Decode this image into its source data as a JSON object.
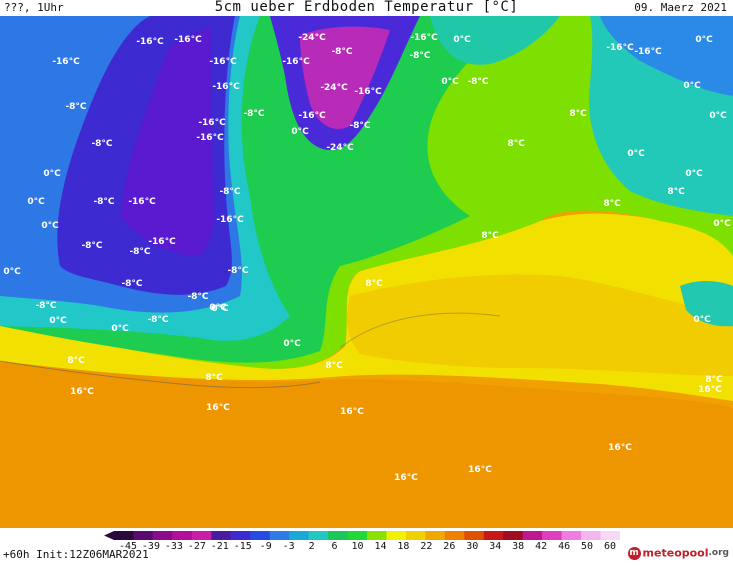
{
  "header": {
    "left": "???, 1Uhr",
    "title": "5cm ueber Erdboden Temperatur [°C]",
    "date": "09. Maerz 2021"
  },
  "legend": {
    "ticks": [
      "-45",
      "-39",
      "-33",
      "-27",
      "-21",
      "-15",
      "-9",
      "-3",
      "2",
      "6",
      "10",
      "14",
      "18",
      "22",
      "26",
      "30",
      "34",
      "38",
      "42",
      "46",
      "50",
      "60"
    ],
    "colors": [
      "#2a0a3a",
      "#5a0a6e",
      "#8a0c8a",
      "#b0109a",
      "#c81ea8",
      "#4a1aa0",
      "#3d2ad0",
      "#2a4ae6",
      "#2e7ae8",
      "#1aa8d8",
      "#22c8c0",
      "#1ac85a",
      "#20d838",
      "#8ae000",
      "#f0f000",
      "#f0d000",
      "#f0a800",
      "#f08000",
      "#e05000",
      "#c81818",
      "#a00c20",
      "#c01890",
      "#e040c0",
      "#f07ce0",
      "#f4b4ee",
      "#f8d8f6"
    ]
  },
  "map": {
    "labels": [
      {
        "t": "-16°C"
      },
      {
        "t": "-16°C"
      },
      {
        "t": "-24°C"
      },
      {
        "t": "-16°C"
      },
      {
        "t": "0°C"
      },
      {
        "t": "-16°C"
      },
      {
        "t": "-16°C"
      },
      {
        "t": "-16°C"
      },
      {
        "t": "-8°C"
      },
      {
        "t": "-8°C"
      },
      {
        "t": "0°C"
      },
      {
        "t": "-16°C"
      },
      {
        "t": "-16°C"
      },
      {
        "t": "-8°C"
      },
      {
        "t": "-24°C"
      },
      {
        "t": "-16°C"
      },
      {
        "t": "0°C"
      },
      {
        "t": "-8°C"
      },
      {
        "t": "-16°C"
      },
      {
        "t": "0°C"
      },
      {
        "t": "-16°C"
      },
      {
        "t": "-8°C"
      },
      {
        "t": "-16°C"
      },
      {
        "t": "-8°C"
      },
      {
        "t": "0°C"
      },
      {
        "t": "-16°C"
      },
      {
        "t": "-24°C"
      },
      {
        "t": "-8°C"
      },
      {
        "t": "0°C"
      },
      {
        "t": "8°C"
      },
      {
        "t": "8°C"
      },
      {
        "t": "0°C"
      },
      {
        "t": "8°C"
      },
      {
        "t": "0°C"
      },
      {
        "t": "0°C"
      },
      {
        "t": "-16°C"
      },
      {
        "t": "-8°C"
      },
      {
        "t": "8°C"
      },
      {
        "t": "0°C"
      },
      {
        "t": "-16°C"
      },
      {
        "t": "-8°C"
      },
      {
        "t": "0°C"
      },
      {
        "t": "-8°C"
      },
      {
        "t": "-16°C"
      },
      {
        "t": "0°C"
      },
      {
        "t": "8°C"
      },
      {
        "t": "-8°C"
      },
      {
        "t": "-8°C"
      },
      {
        "t": "-8°C"
      },
      {
        "t": "8°C"
      },
      {
        "t": "0°C"
      },
      {
        "t": "-8°C"
      },
      {
        "t": "-8°C"
      },
      {
        "t": "0°C"
      },
      {
        "t": "-8°C"
      },
      {
        "t": "0°C"
      },
      {
        "t": "0°C"
      },
      {
        "t": "0°C"
      },
      {
        "t": "0°C"
      },
      {
        "t": "8°C"
      },
      {
        "t": "8°C"
      },
      {
        "t": "16°C"
      },
      {
        "t": "8°C"
      },
      {
        "t": "16°C"
      },
      {
        "t": "16°C"
      },
      {
        "t": "8°C"
      },
      {
        "t": "16°C"
      },
      {
        "t": "16°C"
      },
      {
        "t": "16°C"
      },
      {
        "t": "16°C"
      },
      {
        "t": "0°C"
      }
    ]
  },
  "footer": {
    "run_info": "+60h Init:12Z06MAR2021",
    "brand_name": "meteopool",
    "brand_tld": ".org"
  }
}
